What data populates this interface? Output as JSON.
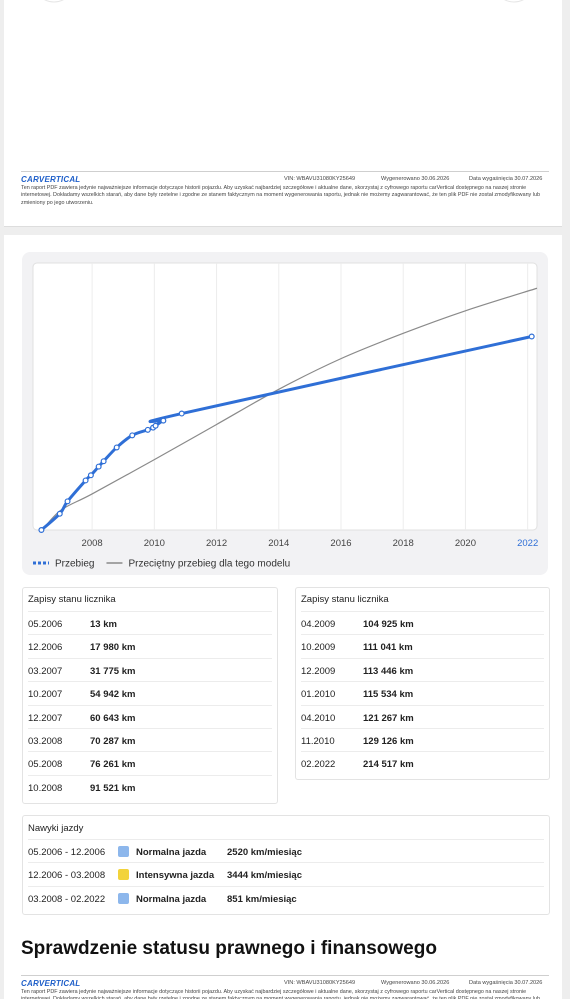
{
  "footer": {
    "logo": "CARVERTICAL",
    "vin": "VIN: WBAVU31080KY25649",
    "generated": "Wygenerowano 30.06.2026",
    "expires": "Data wygaśnięcia 30.07.2026",
    "disclaimer": "Ten raport PDF zawiera jedynie najważniejsze informacje dotyczące historii pojazdu. Aby uzyskać najbardziej szczegółowe i aktualne dane, skorzystaj z cyfrowego raportu carVertical dostępnego na naszej stronie internetowej. Dokładamy wszelkich starań, aby dane były rzetelne i zgodne ze stanem faktycznym na moment wygenerowania raportu, jednak nie możemy zagwarantować, że ten plik PDF nie został zmodyfikowany lub zmieniony po jego utworzeniu."
  },
  "chart_data": {
    "type": "line",
    "xlim": [
      2006.1,
      2022.3
    ],
    "xticks": [
      2008,
      2010,
      2012,
      2014,
      2016,
      2018,
      2020,
      2022
    ],
    "ylim": [
      0,
      296000
    ],
    "grid": true,
    "series": [
      {
        "name": "Przebieg",
        "color": "#2f6fd6",
        "x": [
          2006.37,
          2006.96,
          2007.21,
          2007.79,
          2007.96,
          2008.21,
          2008.37,
          2008.79,
          2009.29,
          2009.79,
          2009.96,
          2010.04,
          2010.29,
          2010.88,
          2022.13
        ],
        "values": [
          13,
          17980,
          31775,
          54942,
          60643,
          70287,
          76261,
          91521,
          104925,
          111041,
          113446,
          115534,
          121267,
          129126,
          214517
        ]
      },
      {
        "name": "Przeciętny przebieg dla tego modelu",
        "color": "#8a8a8a",
        "x": [
          2006.4,
          2007,
          2008,
          2010,
          2012,
          2014,
          2016,
          2018,
          2020,
          2022.3
        ],
        "values": [
          0,
          22000,
          40000,
          78000,
          117000,
          156000,
          190000,
          218000,
          243000,
          268000
        ]
      }
    ]
  },
  "records_left": {
    "title": "Zapisy stanu licznika",
    "rows": [
      [
        "05.2006",
        "13 km"
      ],
      [
        "12.2006",
        "17 980 km"
      ],
      [
        "03.2007",
        "31 775 km"
      ],
      [
        "10.2007",
        "54 942 km"
      ],
      [
        "12.2007",
        "60 643 km"
      ],
      [
        "03.2008",
        "70 287 km"
      ],
      [
        "05.2008",
        "76 261 km"
      ],
      [
        "10.2008",
        "91 521 km"
      ]
    ]
  },
  "records_right": {
    "title": "Zapisy stanu licznika",
    "rows": [
      [
        "04.2009",
        "104 925 km"
      ],
      [
        "10.2009",
        "111 041 km"
      ],
      [
        "12.2009",
        "113 446 km"
      ],
      [
        "01.2010",
        "115 534 km"
      ],
      [
        "04.2010",
        "121 267 km"
      ],
      [
        "11.2010",
        "129 126 km"
      ],
      [
        "02.2022",
        "214 517 km"
      ]
    ]
  },
  "habits": {
    "title": "Nawyki jazdy",
    "rows": [
      {
        "period": "05.2006 - 12.2006",
        "color": "#8db7ec",
        "label": "Normalna jazda",
        "rate": "2520 km/miesiąc"
      },
      {
        "period": "12.2006 - 03.2008",
        "color": "#f2d33b",
        "label": "Intensywna jazda",
        "rate": "3444 km/miesiąc"
      },
      {
        "period": "03.2008 - 02.2022",
        "color": "#8db7ec",
        "label": "Normalna jazda",
        "rate": "851 km/miesiąc"
      }
    ]
  },
  "section_heading": "Sprawdzenie statusu prawnego i finansowego"
}
